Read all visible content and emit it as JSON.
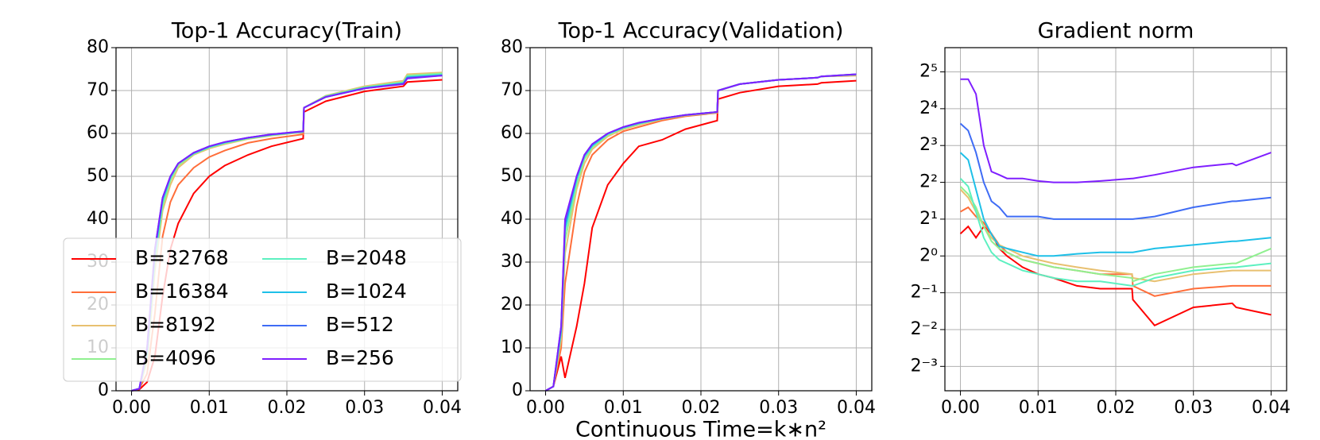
{
  "chart_data": [
    {
      "type": "line",
      "title": "Top-1 Accuracy(Train)",
      "x": [
        0,
        0.001,
        0.002,
        0.003,
        0.004,
        0.005,
        0.006,
        0.008,
        0.01,
        0.012,
        0.015,
        0.018,
        0.0221,
        0.0222,
        0.025,
        0.03,
        0.035,
        0.0355,
        0.04
      ],
      "xlim": [
        -0.002,
        0.042
      ],
      "xticks": [
        {
          "value": 0,
          "label": "0.00"
        },
        0.01,
        0.02,
        0.03,
        0.04
      ],
      "ylim": [
        0,
        80
      ],
      "yticks": [
        0,
        10,
        20,
        30,
        40,
        50,
        60,
        70,
        80
      ],
      "grid": true,
      "legend": "lower left",
      "legend_columns": 2,
      "series": [
        {
          "name": "B=32768",
          "color": "#ff0000",
          "values": [
            0,
            0.3,
            2,
            8,
            22,
            33,
            39,
            46,
            50,
            52.5,
            55,
            57,
            58.8,
            65,
            67.5,
            69.8,
            71,
            72,
            72.5
          ]
        },
        {
          "name": "B=16384",
          "color": "#ff6e3a",
          "values": [
            0,
            0.5,
            4,
            18,
            36,
            44,
            48,
            52,
            54.5,
            56,
            57.8,
            58.8,
            59.8,
            66,
            68.5,
            70.8,
            72,
            73.5,
            74
          ]
        },
        {
          "name": "B=8192",
          "color": "#e8c070",
          "values": [
            0,
            0.5,
            7,
            28,
            42,
            48,
            52,
            55,
            56.5,
            57.5,
            58.7,
            59.5,
            60.3,
            66,
            68.8,
            71,
            72.3,
            73.8,
            74.2
          ]
        },
        {
          "name": "B=4096",
          "color": "#90f090",
          "values": [
            0,
            0.5,
            8,
            30,
            43,
            49,
            52.5,
            55.2,
            56.7,
            57.7,
            58.8,
            59.6,
            60.4,
            66,
            68.7,
            70.8,
            72,
            73.5,
            74
          ]
        },
        {
          "name": "B=2048",
          "color": "#5cf0c0",
          "values": [
            0,
            0.5,
            9,
            31,
            44,
            49.5,
            53,
            55.3,
            56.8,
            57.8,
            58.9,
            59.7,
            60.4,
            66,
            68.6,
            70.7,
            71.8,
            73.3,
            73.8
          ]
        },
        {
          "name": "B=1024",
          "color": "#1ec0e8",
          "values": [
            0,
            0.5,
            9,
            32,
            44.5,
            49.8,
            53,
            55.4,
            56.9,
            57.9,
            59,
            59.7,
            60.4,
            66,
            68.5,
            70.6,
            71.7,
            73.1,
            73.6
          ]
        },
        {
          "name": "B=512",
          "color": "#3f6cf5",
          "values": [
            0,
            0.5,
            10,
            33,
            45,
            50,
            53,
            55.5,
            57,
            58,
            59,
            59.8,
            60.5,
            66,
            68.5,
            70.5,
            71.6,
            73,
            73.5
          ]
        },
        {
          "name": "B=256",
          "color": "#7f1fff",
          "values": [
            0,
            0.5,
            10,
            33,
            45,
            50,
            53,
            55.5,
            57,
            58,
            59,
            59.8,
            60.5,
            66,
            68.5,
            70.5,
            71.5,
            72.8,
            73.5
          ]
        }
      ]
    },
    {
      "type": "line",
      "title": "Top-1 Accuracy(Validation)",
      "xlabel": "Continuous Time=k∗n²",
      "x": [
        0,
        0.001,
        0.002,
        0.0025,
        0.004,
        0.005,
        0.006,
        0.008,
        0.01,
        0.012,
        0.015,
        0.018,
        0.0221,
        0.0222,
        0.025,
        0.03,
        0.035,
        0.0355,
        0.04
      ],
      "xlim": [
        -0.002,
        0.042
      ],
      "xticks": [
        {
          "value": 0,
          "label": "0.00"
        },
        0.01,
        0.02,
        0.03,
        0.04
      ],
      "ylim": [
        0,
        80
      ],
      "yticks": [
        0,
        10,
        20,
        30,
        40,
        50,
        60,
        70,
        80
      ],
      "grid": true,
      "series": [
        {
          "color": "#ff0000",
          "values": [
            0,
            1,
            8,
            3,
            15,
            25,
            38,
            48,
            53,
            57,
            58.5,
            61,
            63,
            68,
            69.5,
            71,
            71.5,
            71.8,
            72.3
          ]
        },
        {
          "color": "#ff6e3a",
          "values": [
            0,
            1,
            10,
            25,
            43,
            51,
            55,
            58.5,
            60.5,
            61.5,
            63,
            64,
            64.8,
            70,
            71.5,
            72.5,
            73,
            73.3,
            73.5
          ]
        },
        {
          "color": "#e8c070",
          "values": [
            0,
            1,
            12,
            32,
            47,
            53,
            56.3,
            59.3,
            61,
            62,
            63.3,
            64.2,
            64.9,
            70,
            71.5,
            72.5,
            73,
            73.3,
            73.6
          ]
        },
        {
          "color": "#90f090",
          "values": [
            0,
            1,
            13,
            35,
            48,
            54,
            56.8,
            59.6,
            61.2,
            62.2,
            63.4,
            64.2,
            64.9,
            70,
            71.5,
            72.5,
            73,
            73.3,
            73.7
          ]
        },
        {
          "color": "#5cf0c0",
          "values": [
            0,
            1,
            14,
            37,
            49,
            54.5,
            57,
            59.8,
            61.3,
            62.3,
            63.4,
            64.3,
            65,
            70,
            71.5,
            72.5,
            73,
            73.3,
            73.7
          ]
        },
        {
          "color": "#1ec0e8",
          "values": [
            0,
            1,
            14,
            38,
            49.5,
            54.8,
            57.2,
            59.9,
            61.4,
            62.4,
            63.5,
            64.3,
            65,
            70,
            71.5,
            72.5,
            73,
            73.3,
            73.8
          ]
        },
        {
          "color": "#3f6cf5",
          "values": [
            0,
            1,
            15,
            39,
            50,
            55,
            57.5,
            60,
            61.5,
            62.5,
            63.5,
            64.3,
            65,
            70,
            71.5,
            72.5,
            73,
            73.3,
            73.8
          ]
        },
        {
          "color": "#7f1fff",
          "values": [
            0,
            1,
            15,
            40,
            50,
            55,
            57.5,
            60,
            61.5,
            62.5,
            63.5,
            64.3,
            65,
            70,
            71.5,
            72.5,
            73,
            73.3,
            73.8
          ]
        }
      ]
    },
    {
      "type": "line",
      "title": "Gradient norm",
      "yscale": "log",
      "x": [
        0,
        0.001,
        0.002,
        0.003,
        0.004,
        0.005,
        0.006,
        0.008,
        0.01,
        0.012,
        0.015,
        0.018,
        0.0221,
        0.0222,
        0.025,
        0.03,
        0.035,
        0.0355,
        0.04
      ],
      "xlim": [
        -0.002,
        0.042
      ],
      "xticks": [
        {
          "value": 0,
          "label": "0.00"
        },
        0.01,
        0.02,
        0.03,
        0.04
      ],
      "ylim": [
        0.079,
        50.5
      ],
      "yticks": [
        {
          "value": 0.125,
          "label": "2⁻³"
        },
        {
          "value": 0.25,
          "label": "2⁻²"
        },
        {
          "value": 0.5,
          "label": "2⁻¹"
        },
        {
          "value": 1,
          "label": "2⁰"
        },
        {
          "value": 2,
          "label": "2¹"
        },
        {
          "value": 4,
          "label": "2²"
        },
        {
          "value": 8,
          "label": "2³"
        },
        {
          "value": 16,
          "label": "2⁴"
        },
        {
          "value": 32,
          "label": "2⁵"
        }
      ],
      "grid": true,
      "series": [
        {
          "color": "#ff0000",
          "values": [
            1.52,
            1.74,
            1.41,
            1.74,
            1.52,
            1.15,
            1,
            0.81,
            0.71,
            0.66,
            0.57,
            0.54,
            0.54,
            0.44,
            0.27,
            0.38,
            0.41,
            0.38,
            0.33
          ]
        },
        {
          "color": "#ff6e3a",
          "values": [
            2.3,
            2.5,
            2.1,
            1.87,
            1.52,
            1.23,
            1.07,
            0.93,
            0.87,
            0.81,
            0.76,
            0.71,
            0.71,
            0.57,
            0.47,
            0.54,
            0.57,
            0.57,
            0.57
          ]
        },
        {
          "color": "#e8c070",
          "values": [
            3.5,
            3,
            2.3,
            1.74,
            1.41,
            1.23,
            1.15,
            1,
            0.93,
            0.87,
            0.81,
            0.76,
            0.71,
            0.66,
            0.62,
            0.71,
            0.76,
            0.76,
            0.76
          ]
        },
        {
          "color": "#90f090",
          "values": [
            3.7,
            3.2,
            2.5,
            1.74,
            1.32,
            1.15,
            1.07,
            0.93,
            0.87,
            0.81,
            0.76,
            0.71,
            0.66,
            0.62,
            0.71,
            0.81,
            0.87,
            0.87,
            1.15
          ]
        },
        {
          "color": "#5cf0c0",
          "values": [
            4.3,
            3.7,
            2.3,
            1.41,
            1.07,
            0.93,
            0.87,
            0.76,
            0.71,
            0.66,
            0.62,
            0.62,
            0.57,
            0.57,
            0.66,
            0.76,
            0.81,
            0.81,
            0.87
          ]
        },
        {
          "color": "#1ec0e8",
          "values": [
            7,
            6.1,
            3.5,
            2,
            1.5,
            1.2,
            1.15,
            1.07,
            1,
            1,
            1.04,
            1.07,
            1.07,
            1.07,
            1.15,
            1.23,
            1.32,
            1.32,
            1.41
          ]
        },
        {
          "color": "#3f6cf5",
          "values": [
            12.1,
            10.6,
            7,
            4,
            2.8,
            2.5,
            2.1,
            2.1,
            2.1,
            2,
            2,
            2,
            2,
            2,
            2.1,
            2.5,
            2.8,
            2.8,
            3.0
          ]
        },
        {
          "color": "#7f1fff",
          "values": [
            27.9,
            27.9,
            21.1,
            8,
            4.9,
            4.6,
            4.3,
            4.3,
            4.1,
            4,
            4,
            4.1,
            4.3,
            4.3,
            4.6,
            5.3,
            5.7,
            5.5,
            7
          ]
        }
      ]
    }
  ]
}
